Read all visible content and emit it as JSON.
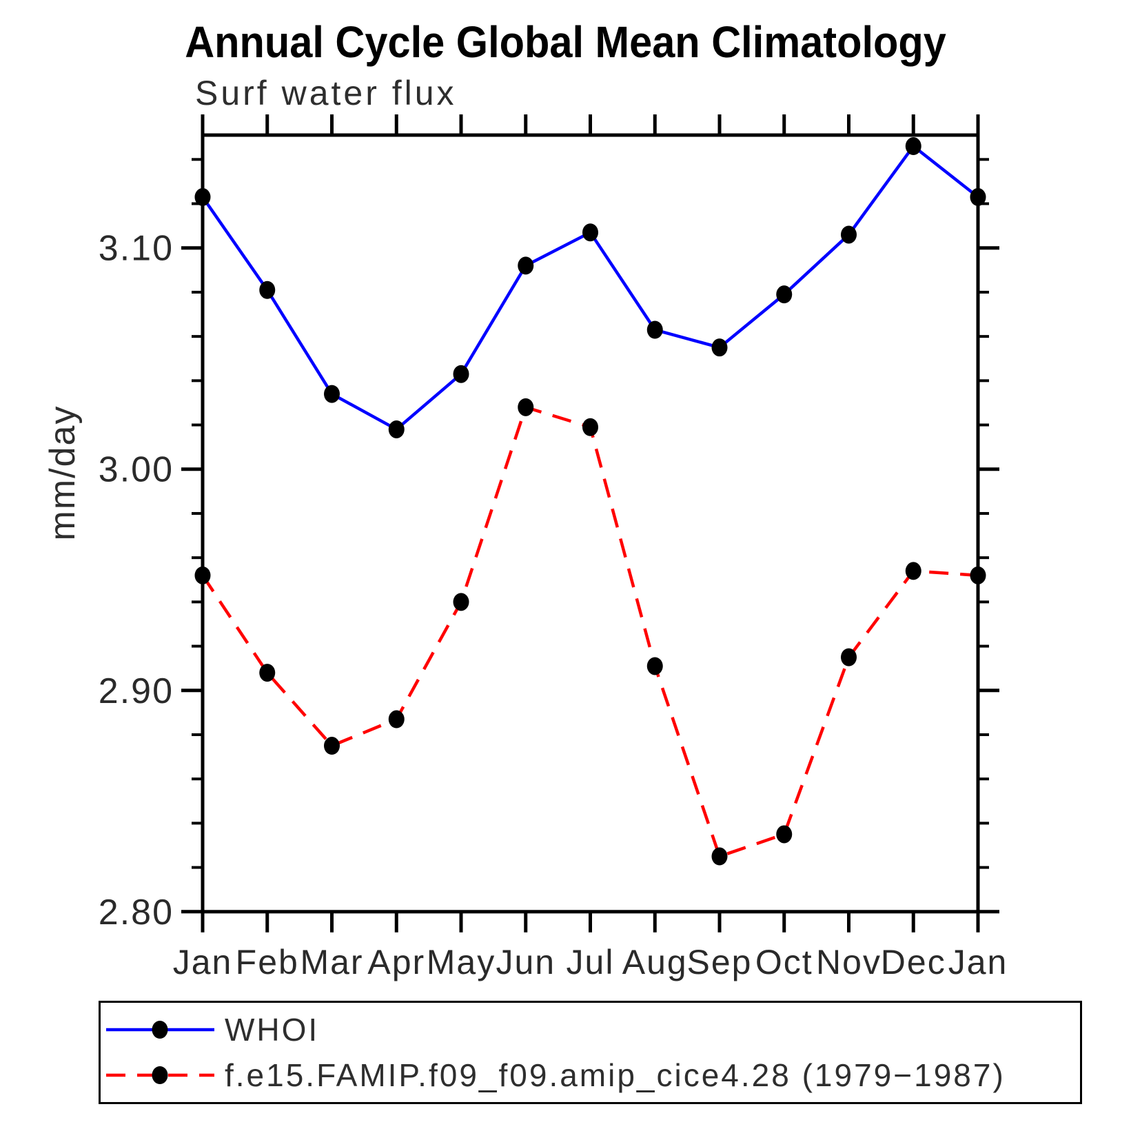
{
  "chart_data": {
    "type": "line",
    "title": "Annual Cycle Global Mean Climatology",
    "subtitle": "Surf water flux",
    "xlabel": "",
    "ylabel": "mm/day",
    "categories": [
      "Jan",
      "Feb",
      "Mar",
      "Apr",
      "May",
      "Jun",
      "Jul",
      "Aug",
      "Sep",
      "Oct",
      "Nov",
      "Dec",
      "Jan"
    ],
    "series": [
      {
        "name": "WHOI",
        "color": "#0000ff",
        "line_style": "solid",
        "marker": "filled-circle",
        "marker_color": "#000000",
        "values": [
          3.123,
          3.081,
          3.034,
          3.018,
          3.043,
          3.092,
          3.107,
          3.063,
          3.055,
          3.079,
          3.106,
          3.146,
          3.123
        ]
      },
      {
        "name": "f.e15.FAMIP.f09_f09.amip_cice4.28 (1979−1987)",
        "color": "#ff0000",
        "line_style": "dashed",
        "marker": "filled-circle",
        "marker_color": "#000000",
        "values": [
          2.952,
          2.908,
          2.875,
          2.887,
          2.94,
          3.028,
          3.019,
          2.911,
          2.825,
          2.835,
          2.915,
          2.954,
          2.952
        ]
      }
    ],
    "ylim": [
      2.8,
      3.151
    ],
    "y_major_ticks": [
      2.8,
      2.9,
      3.0,
      3.1
    ],
    "y_tick_labels": [
      "2.80",
      "2.90",
      "3.00",
      "3.10"
    ],
    "y_minor_tick_step": 0.02,
    "grid": false,
    "legend_position": "bottom-box"
  }
}
